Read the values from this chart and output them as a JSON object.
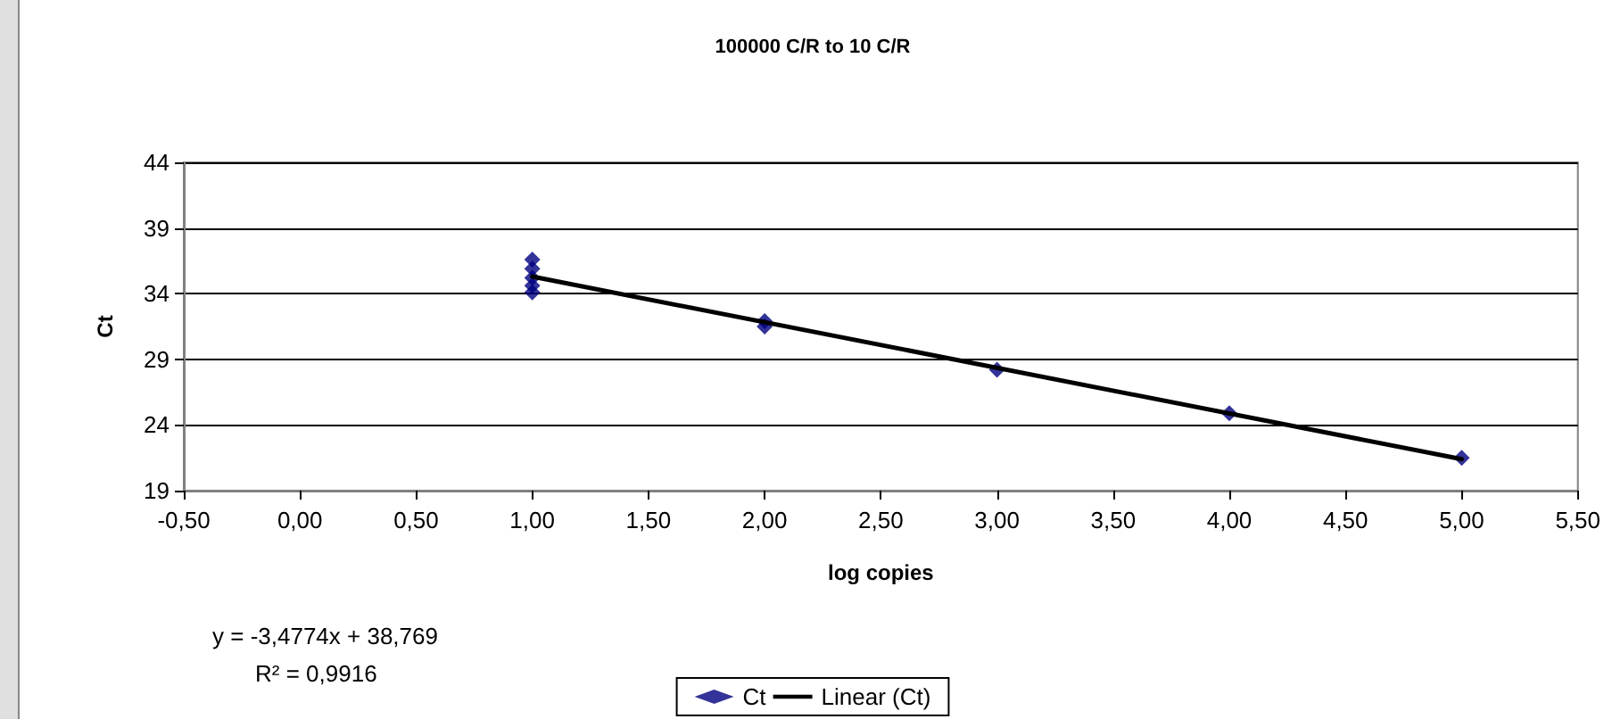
{
  "chart_data": {
    "type": "scatter",
    "title": "100000 C/R to 10 C/R",
    "xlabel": "log copies",
    "ylabel": "Ct",
    "series": [
      {
        "name": "Ct",
        "color": "#000080",
        "marker": "diamond",
        "x": [
          1,
          1,
          1,
          1,
          1,
          2,
          2,
          3,
          4,
          5
        ],
        "values": [
          36.6,
          35.9,
          35.2,
          34.6,
          34.1,
          31.9,
          31.5,
          28.2,
          24.9,
          21.5
        ]
      },
      {
        "name": "Linear (Ct)",
        "type": "line",
        "color": "#000000",
        "marker": "none",
        "line_style": "solid",
        "x": [
          1,
          5
        ],
        "values": [
          35.3,
          21.4
        ]
      }
    ],
    "xlim": [
      -0.5,
      5.5
    ],
    "xticks": [
      {
        "value": -0.5,
        "label": "-0,50"
      },
      {
        "value": 0,
        "label": "0,00"
      },
      {
        "value": 0.5,
        "label": "0,50"
      },
      {
        "value": 1,
        "label": "1,00"
      },
      {
        "value": 1.5,
        "label": "1,50"
      },
      {
        "value": 2,
        "label": "2,00"
      },
      {
        "value": 2.5,
        "label": "2,50"
      },
      {
        "value": 3,
        "label": "3,00"
      },
      {
        "value": 3.5,
        "label": "3,50"
      },
      {
        "value": 4,
        "label": "4,00"
      },
      {
        "value": 4.5,
        "label": "4,50"
      },
      {
        "value": 5,
        "label": "5,00"
      },
      {
        "value": 5.5,
        "label": "5,50"
      }
    ],
    "ylim": [
      19,
      44
    ],
    "yticks": [
      19,
      24,
      29,
      34,
      39,
      44
    ],
    "grid": "y",
    "legend": "bottom",
    "annotations": [
      "y = -3,4774x + 38,769",
      "R² = 0,9916"
    ]
  }
}
